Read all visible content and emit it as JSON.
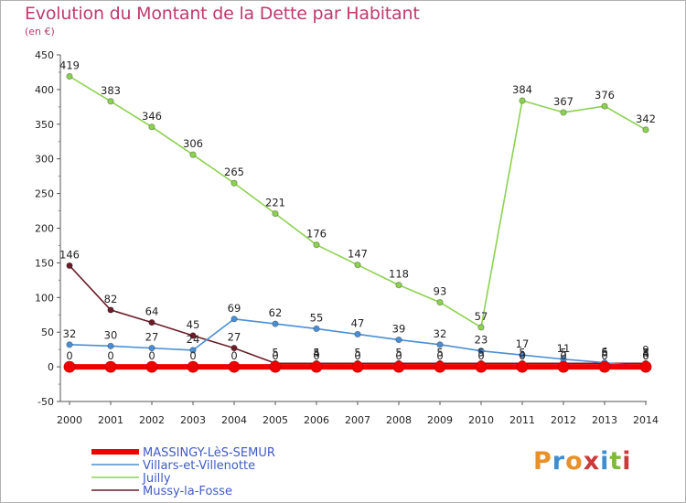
{
  "header": {
    "title": "Evolution du Montant de la Dette par Habitant",
    "subtitle": "(en €)"
  },
  "logo": {
    "text": "Proxiti",
    "colors": [
      "#e8912a",
      "#3f8ed0",
      "#e8912a",
      "#c93b3b",
      "#3f8ed0",
      "#7fba3a",
      "#c93b3b"
    ]
  },
  "chart_data": {
    "type": "line",
    "title": "Evolution du Montant de la Dette par Habitant",
    "subtitle": "(en €)",
    "x": [
      "2000",
      "2001",
      "2002",
      "2003",
      "2004",
      "2005",
      "2006",
      "2007",
      "2008",
      "2009",
      "2010",
      "2011",
      "2012",
      "2013",
      "2014"
    ],
    "ylim": [
      -50,
      450
    ],
    "yticks": [
      -50,
      0,
      50,
      100,
      150,
      200,
      250,
      300,
      350,
      400,
      450
    ],
    "grid": false,
    "legend_position": "bottom-left",
    "series": [
      {
        "name": "MASSINGY-LèS-SEMUR",
        "color": "#ee0000",
        "values": [
          0,
          0,
          0,
          0,
          0,
          0,
          0,
          0,
          0,
          0,
          0,
          0,
          0,
          0,
          0
        ],
        "labels": [
          "0",
          "0",
          "0",
          "0",
          "0",
          "0",
          "0",
          "0",
          "0",
          "0",
          "0",
          "0",
          "0",
          "0",
          "0"
        ]
      },
      {
        "name": "Villars-et-Villenotte",
        "color": "#4a8fd4",
        "values": [
          32,
          30,
          27,
          24,
          69,
          62,
          55,
          47,
          39,
          32,
          23,
          17,
          11,
          6,
          0
        ],
        "labels": [
          "32",
          "30",
          "27",
          "24",
          "69",
          "62",
          "55",
          "47",
          "39",
          "32",
          "23",
          "17",
          "11",
          "6",
          "0"
        ]
      },
      {
        "name": "Juilly",
        "color": "#8cd250",
        "values": [
          419,
          383,
          346,
          306,
          265,
          221,
          176,
          147,
          118,
          93,
          57,
          384,
          367,
          376,
          342
        ],
        "labels": [
          "419",
          "383",
          "346",
          "306",
          "265",
          "221",
          "176",
          "147",
          "118",
          "93",
          "57",
          "384",
          "367",
          "376",
          "342"
        ]
      },
      {
        "name": "Mussy-la-Fosse",
        "color": "#6b1d2a",
        "values": [
          146,
          82,
          64,
          45,
          27,
          5,
          5,
          5,
          5,
          5,
          5,
          5,
          5,
          5,
          5
        ],
        "labels": [
          "146",
          "82",
          "64",
          "45",
          "27",
          "5",
          "5",
          "5",
          "5",
          "5",
          "5",
          "5",
          "5",
          "5",
          "5"
        ]
      }
    ],
    "extra_labels": [
      {
        "x": "2006",
        "value": 4,
        "text": "4"
      },
      {
        "x": "2014",
        "value": 4,
        "text": "4"
      },
      {
        "x": "2014",
        "value": 9,
        "text": "9"
      }
    ]
  }
}
